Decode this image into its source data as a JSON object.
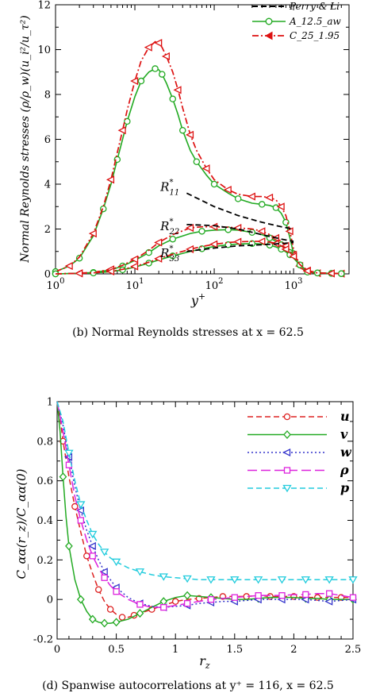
{
  "chart_data": [
    {
      "type": "line",
      "xscale": "log",
      "xlim": [
        1,
        5000
      ],
      "ylim": [
        0,
        12
      ],
      "x_ticks": [
        {
          "value": 1,
          "base": "10",
          "exp": "0"
        },
        {
          "value": 10,
          "base": "10",
          "exp": "1"
        },
        {
          "value": 100,
          "base": "10",
          "exp": "2"
        },
        {
          "value": 1000,
          "base": "10",
          "exp": "3"
        }
      ],
      "y_ticks": [
        "0",
        "2",
        "4",
        "6",
        "8",
        "10",
        "12"
      ],
      "y_tick_values": [
        0,
        2,
        4,
        6,
        8,
        10,
        12
      ],
      "xlabel": {
        "base": "y",
        "sup": "+"
      },
      "ylabel": "Normal Reynolds stresses (ρ/ρ_w)(u_i²/u_τ²)",
      "caption": "(b) Normal Reynolds stresses at x = 62.5",
      "legend": [
        {
          "label": "Perry & Li",
          "color": "#000000",
          "style": "dashed",
          "marker": "none"
        },
        {
          "label": "A_12.5_aw",
          "color": "#22aa22",
          "style": "solid",
          "marker": "circle"
        },
        {
          "label": "C_25_1.95",
          "color": "#dd1111",
          "style": "dashdot",
          "marker": "triangle-left"
        }
      ],
      "annotations": [
        {
          "text": "R",
          "sub": "11",
          "sup": "*",
          "x": 48,
          "y": 3.7
        },
        {
          "text": "R",
          "sub": "22",
          "sup": "*",
          "x": 48,
          "y": 1.95
        },
        {
          "text": "R",
          "sub": "33",
          "sup": "*",
          "x": 48,
          "y": 0.75
        }
      ],
      "series": [
        {
          "curve": "R11",
          "set": "A",
          "color": "#22aa22",
          "x": [
            1,
            1.5,
            2,
            3,
            4,
            5,
            6,
            7,
            8,
            10,
            12,
            15,
            18,
            20,
            22,
            25,
            30,
            35,
            40,
            50,
            60,
            80,
            100,
            150,
            200,
            300,
            400,
            500,
            600,
            700,
            800,
            900,
            1000,
            1200,
            1500,
            2000,
            3000,
            4000
          ],
          "y": [
            0.1,
            0.35,
            0.7,
            1.7,
            2.9,
            4.0,
            5.1,
            6.0,
            6.8,
            7.9,
            8.6,
            9.0,
            9.15,
            9.1,
            8.9,
            8.5,
            7.8,
            7.1,
            6.4,
            5.5,
            5.0,
            4.4,
            4.0,
            3.6,
            3.35,
            3.15,
            3.1,
            3.05,
            2.95,
            2.7,
            2.3,
            1.6,
            0.9,
            0.3,
            0.08,
            0.03,
            0.02,
            0.01
          ]
        },
        {
          "curve": "R11",
          "set": "C",
          "color": "#dd1111",
          "x": [
            1,
            1.5,
            2,
            3,
            4,
            5,
            6,
            7,
            8,
            10,
            12,
            15,
            18,
            20,
            22,
            25,
            30,
            35,
            40,
            50,
            60,
            80,
            100,
            150,
            200,
            300,
            400,
            500,
            600,
            700,
            800,
            900,
            1000,
            1200,
            1500,
            2000,
            3000,
            4000
          ],
          "y": [
            0.1,
            0.35,
            0.75,
            1.8,
            3.0,
            4.2,
            5.4,
            6.4,
            7.3,
            8.6,
            9.5,
            10.1,
            10.35,
            10.3,
            10.1,
            9.7,
            9.0,
            8.2,
            7.4,
            6.2,
            5.5,
            4.7,
            4.2,
            3.75,
            3.55,
            3.45,
            3.45,
            3.4,
            3.3,
            3.0,
            2.6,
            1.9,
            1.1,
            0.35,
            0.1,
            0.03,
            0.02,
            0.01
          ]
        },
        {
          "curve": "R22",
          "set": "A",
          "color": "#22aa22",
          "x": [
            1,
            2,
            3,
            5,
            7,
            10,
            15,
            20,
            30,
            50,
            70,
            100,
            150,
            200,
            300,
            400,
            500,
            600,
            700,
            800,
            900,
            1000,
            1200,
            1500,
            2000,
            3000,
            4000
          ],
          "y": [
            0.0,
            0.03,
            0.06,
            0.18,
            0.35,
            0.6,
            0.95,
            1.25,
            1.55,
            1.8,
            1.9,
            1.95,
            1.97,
            1.95,
            1.85,
            1.75,
            1.6,
            1.45,
            1.3,
            1.15,
            0.95,
            0.75,
            0.4,
            0.12,
            0.04,
            0.02,
            0.01
          ]
        },
        {
          "curve": "R22",
          "set": "C",
          "color": "#dd1111",
          "x": [
            1,
            2,
            3,
            5,
            7,
            10,
            15,
            20,
            30,
            50,
            70,
            100,
            150,
            200,
            300,
            400,
            500,
            600,
            700,
            800,
            900,
            1000,
            1200,
            1500,
            2000,
            3000,
            4000
          ],
          "y": [
            0.0,
            0.03,
            0.07,
            0.2,
            0.38,
            0.65,
            1.05,
            1.4,
            1.75,
            2.05,
            2.1,
            2.1,
            2.08,
            2.05,
            2.0,
            1.9,
            1.75,
            1.6,
            1.45,
            1.25,
            1.05,
            0.85,
            0.45,
            0.15,
            0.05,
            0.02,
            0.01
          ]
        },
        {
          "curve": "R33",
          "set": "A",
          "color": "#22aa22",
          "x": [
            1,
            2,
            3,
            5,
            7,
            10,
            15,
            20,
            30,
            50,
            70,
            100,
            150,
            200,
            300,
            400,
            500,
            600,
            700,
            800,
            900,
            1000,
            1200,
            1500,
            2000,
            3000,
            4000
          ],
          "y": [
            0.0,
            0.02,
            0.04,
            0.1,
            0.18,
            0.3,
            0.48,
            0.62,
            0.8,
            1.0,
            1.12,
            1.22,
            1.3,
            1.33,
            1.35,
            1.33,
            1.28,
            1.2,
            1.1,
            0.98,
            0.85,
            0.7,
            0.4,
            0.12,
            0.04,
            0.02,
            0.01
          ]
        },
        {
          "curve": "R33",
          "set": "C",
          "color": "#dd1111",
          "x": [
            1,
            2,
            3,
            5,
            7,
            10,
            15,
            20,
            30,
            50,
            70,
            100,
            150,
            200,
            300,
            400,
            500,
            600,
            700,
            800,
            900,
            1000,
            1200,
            1500,
            2000,
            3000,
            4000
          ],
          "y": [
            0.0,
            0.02,
            0.045,
            0.11,
            0.2,
            0.33,
            0.52,
            0.68,
            0.88,
            1.1,
            1.22,
            1.32,
            1.4,
            1.43,
            1.45,
            1.45,
            1.42,
            1.35,
            1.25,
            1.1,
            0.95,
            0.78,
            0.42,
            0.13,
            0.04,
            0.02,
            0.01
          ]
        },
        {
          "curve": "R11",
          "set": "Perry",
          "color": "#000000",
          "x": [
            45,
            100,
            200,
            400,
            700,
            1000
          ],
          "y": [
            3.6,
            3.0,
            2.6,
            2.3,
            2.1,
            2.0
          ]
        },
        {
          "curve": "R22",
          "set": "Perry",
          "color": "#000000",
          "x": [
            45,
            100,
            200,
            400,
            700,
            1000
          ],
          "y": [
            2.2,
            2.15,
            2.0,
            1.75,
            1.55,
            1.45
          ]
        },
        {
          "curve": "R33",
          "set": "Perry",
          "color": "#000000",
          "x": [
            45,
            100,
            200,
            400,
            700,
            1000
          ],
          "y": [
            1.0,
            1.15,
            1.25,
            1.3,
            1.35,
            1.4
          ]
        }
      ]
    },
    {
      "type": "line",
      "xlim": [
        0,
        2.5
      ],
      "ylim": [
        -0.2,
        1
      ],
      "x_ticks": [
        "0",
        "0.5",
        "1",
        "1.5",
        "2",
        "2.5"
      ],
      "x_tick_values": [
        0,
        0.5,
        1,
        1.5,
        2,
        2.5
      ],
      "y_ticks": [
        "-0.2",
        "0",
        "0.2",
        "0.4",
        "0.6",
        "0.8",
        "1"
      ],
      "y_tick_values": [
        -0.2,
        0,
        0.2,
        0.4,
        0.6,
        0.8,
        1
      ],
      "xlabel": {
        "base": "r",
        "sub": "z"
      },
      "ylabel": "C_αα(r_z)/C_αα(0)",
      "caption": "(d) Spanwise autocorrelations at y⁺ = 116, x = 62.5",
      "legend": [
        {
          "label": "u",
          "color": "#dd2222",
          "style": "dashed",
          "marker": "circle"
        },
        {
          "label": "v",
          "color": "#22aa22",
          "style": "solid",
          "marker": "diamond"
        },
        {
          "label": "w",
          "color": "#3333cc",
          "style": "dotted",
          "marker": "triangle-left"
        },
        {
          "label": "ρ",
          "color": "#dd22dd",
          "style": "longdash",
          "marker": "square"
        },
        {
          "label": "p",
          "color": "#22ccdd",
          "style": "dashed",
          "marker": "triangle-down"
        }
      ],
      "series": [
        {
          "name": "u",
          "color": "#dd2222",
          "x": [
            0,
            0.025,
            0.05,
            0.1,
            0.15,
            0.2,
            0.25,
            0.3,
            0.35,
            0.4,
            0.45,
            0.5,
            0.55,
            0.6,
            0.65,
            0.7,
            0.8,
            0.9,
            1.0,
            1.1,
            1.2,
            1.3,
            1.4,
            1.5,
            1.6,
            1.7,
            1.8,
            1.9,
            2.0,
            2.1,
            2.2,
            2.3,
            2.4,
            2.5
          ],
          "y": [
            1.0,
            0.92,
            0.8,
            0.62,
            0.47,
            0.34,
            0.22,
            0.13,
            0.05,
            -0.01,
            -0.05,
            -0.075,
            -0.09,
            -0.09,
            -0.08,
            -0.07,
            -0.05,
            -0.03,
            -0.01,
            0.0,
            0.005,
            0.01,
            0.015,
            0.015,
            0.015,
            0.02,
            0.015,
            0.015,
            0.015,
            0.01,
            0.01,
            0.01,
            0.01,
            0.01
          ]
        },
        {
          "name": "v",
          "color": "#22aa22",
          "x": [
            0,
            0.025,
            0.05,
            0.075,
            0.1,
            0.15,
            0.2,
            0.25,
            0.3,
            0.35,
            0.4,
            0.45,
            0.5,
            0.6,
            0.7,
            0.8,
            0.9,
            1.0,
            1.1,
            1.2,
            1.3,
            1.4,
            1.5,
            1.6,
            1.7,
            1.8,
            1.9,
            2.0,
            2.1,
            2.2,
            2.3,
            2.4,
            2.5
          ],
          "y": [
            1.0,
            0.85,
            0.62,
            0.42,
            0.27,
            0.1,
            0.0,
            -0.06,
            -0.1,
            -0.115,
            -0.12,
            -0.12,
            -0.115,
            -0.1,
            -0.07,
            -0.04,
            -0.01,
            0.01,
            0.02,
            0.015,
            0.01,
            0.005,
            0.0,
            0.0,
            0.005,
            0.01,
            0.01,
            0.01,
            0.005,
            0.005,
            0.0,
            0.0,
            0.0
          ]
        },
        {
          "name": "w",
          "color": "#3333cc",
          "x": [
            0,
            0.05,
            0.1,
            0.15,
            0.2,
            0.25,
            0.3,
            0.35,
            0.4,
            0.45,
            0.5,
            0.6,
            0.7,
            0.8,
            0.9,
            1.0,
            1.1,
            1.2,
            1.3,
            1.4,
            1.5,
            1.6,
            1.7,
            1.8,
            1.9,
            2.0,
            2.1,
            2.2,
            2.3,
            2.4,
            2.5
          ],
          "y": [
            1.0,
            0.88,
            0.72,
            0.57,
            0.45,
            0.35,
            0.27,
            0.2,
            0.14,
            0.1,
            0.06,
            0.01,
            -0.02,
            -0.035,
            -0.04,
            -0.035,
            -0.03,
            -0.02,
            -0.015,
            -0.01,
            -0.01,
            -0.005,
            0.0,
            0.0,
            0.0,
            0.0,
            0.0,
            -0.005,
            -0.01,
            -0.005,
            0.0
          ]
        },
        {
          "name": "ρ",
          "color": "#dd22dd",
          "x": [
            0,
            0.05,
            0.1,
            0.15,
            0.2,
            0.25,
            0.3,
            0.35,
            0.4,
            0.45,
            0.5,
            0.6,
            0.7,
            0.8,
            0.9,
            1.0,
            1.1,
            1.2,
            1.3,
            1.4,
            1.5,
            1.6,
            1.7,
            1.8,
            1.9,
            2.0,
            2.1,
            2.2,
            2.3,
            2.4,
            2.5
          ],
          "y": [
            1.0,
            0.85,
            0.68,
            0.52,
            0.4,
            0.3,
            0.22,
            0.16,
            0.11,
            0.07,
            0.04,
            0.0,
            -0.025,
            -0.04,
            -0.04,
            -0.03,
            -0.02,
            -0.01,
            0.0,
            0.005,
            0.01,
            0.015,
            0.02,
            0.02,
            0.02,
            0.025,
            0.025,
            0.03,
            0.03,
            0.02,
            0.01
          ]
        },
        {
          "name": "p",
          "color": "#22ccdd",
          "x": [
            0,
            0.05,
            0.1,
            0.15,
            0.2,
            0.25,
            0.3,
            0.35,
            0.4,
            0.45,
            0.5,
            0.6,
            0.7,
            0.8,
            0.9,
            1.0,
            1.1,
            1.2,
            1.3,
            1.4,
            1.5,
            1.6,
            1.7,
            1.8,
            1.9,
            2.0,
            2.1,
            2.2,
            2.3,
            2.4,
            2.5
          ],
          "y": [
            1.0,
            0.9,
            0.74,
            0.6,
            0.48,
            0.4,
            0.33,
            0.28,
            0.24,
            0.21,
            0.19,
            0.16,
            0.14,
            0.125,
            0.115,
            0.11,
            0.105,
            0.1,
            0.1,
            0.1,
            0.1,
            0.1,
            0.1,
            0.1,
            0.1,
            0.1,
            0.1,
            0.1,
            0.1,
            0.1,
            0.1
          ]
        }
      ]
    }
  ]
}
